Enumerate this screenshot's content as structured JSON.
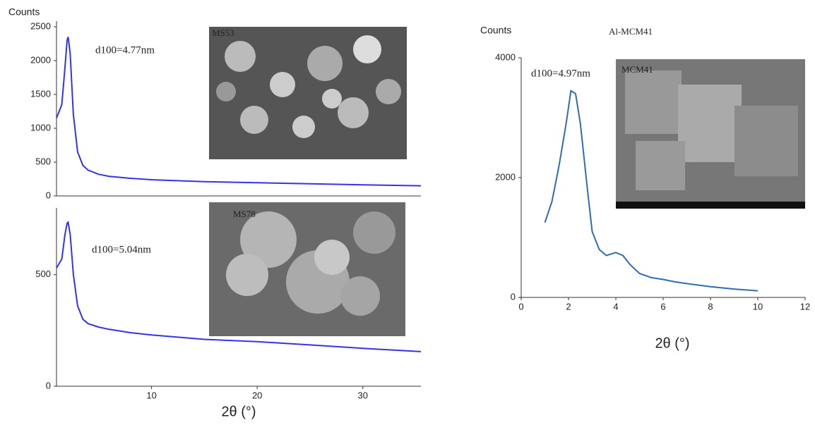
{
  "chart_data": [
    {
      "type": "line",
      "ylabel": "Counts",
      "annotation": "d100=4.77nm",
      "image_label": "MS53",
      "x": [
        1,
        1.5,
        1.8,
        2,
        2.1,
        2.3,
        2.6,
        3,
        3.5,
        4,
        5,
        6,
        8,
        10,
        15,
        20,
        25,
        30,
        35.5
      ],
      "values": [
        1150,
        1350,
        1900,
        2300,
        2350,
        2100,
        1200,
        650,
        450,
        380,
        320,
        290,
        260,
        240,
        210,
        195,
        180,
        165,
        150
      ],
      "color": "#3333ee",
      "xlim": [
        1,
        35.5
      ],
      "ylim": [
        0,
        2500
      ],
      "yticks": [
        0,
        500,
        1000,
        1500,
        2000,
        2500
      ]
    },
    {
      "type": "line",
      "xlabel": "2θ (°)",
      "annotation": "d100=5.04nm",
      "image_label": "MS78",
      "x": [
        1,
        1.5,
        1.8,
        2,
        2.1,
        2.3,
        2.6,
        3,
        3.5,
        4,
        5,
        6,
        8,
        10,
        15,
        20,
        25,
        30,
        35.5
      ],
      "values": [
        530,
        570,
        680,
        730,
        735,
        680,
        500,
        360,
        300,
        280,
        265,
        255,
        240,
        230,
        210,
        200,
        185,
        170,
        155
      ],
      "color": "#3333ee",
      "xlim": [
        1,
        35.5
      ],
      "ylim": [
        0,
        780
      ],
      "xticks": [
        10,
        20,
        30
      ],
      "yticks": [
        0,
        500
      ]
    },
    {
      "type": "line",
      "title": "Al-MCM41",
      "ylabel": "Counts",
      "xlabel": "2θ (°)",
      "annotation": "d100=4.97nm",
      "image_label": "MCM41",
      "x": [
        1,
        1.3,
        1.6,
        1.9,
        2.1,
        2.3,
        2.5,
        2.8,
        3,
        3.3,
        3.6,
        4,
        4.3,
        4.6,
        5,
        5.5,
        6,
        6.5,
        7,
        8,
        9,
        10
      ],
      "values": [
        1250,
        1600,
        2200,
        2900,
        3450,
        3400,
        2900,
        1800,
        1100,
        800,
        700,
        750,
        700,
        550,
        400,
        330,
        300,
        260,
        230,
        180,
        140,
        110
      ],
      "color": "#2e6db4",
      "xlim": [
        0,
        12
      ],
      "ylim": [
        0,
        4000
      ],
      "xticks": [
        0,
        2,
        4,
        6,
        8,
        10,
        12
      ],
      "yticks": [
        0,
        2000,
        4000
      ]
    }
  ]
}
